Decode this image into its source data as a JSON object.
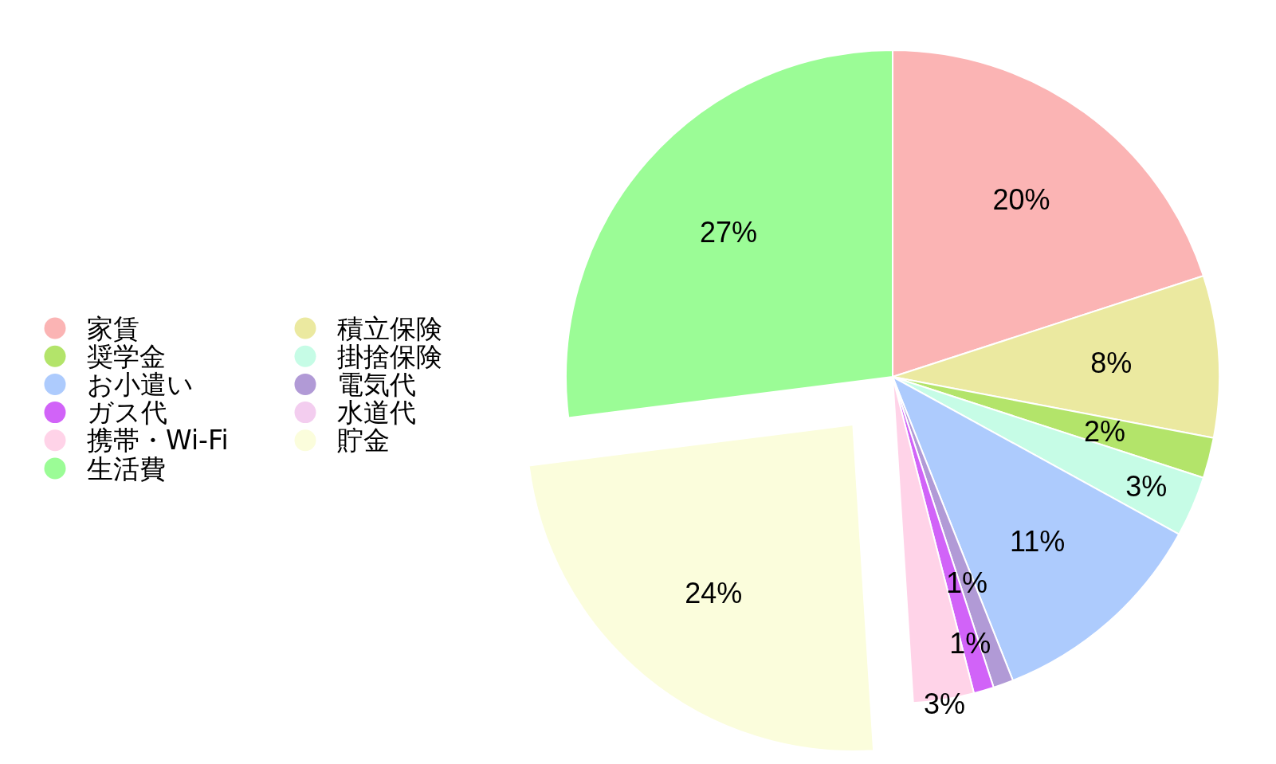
{
  "chart_data": {
    "type": "pie",
    "categories": [
      "家賃",
      "積立保険",
      "奨学金",
      "掛捨保険",
      "お小遣い",
      "電気代",
      "ガス代",
      "水道代",
      "携帯・Wi-Fi",
      "貯金",
      "生活費"
    ],
    "values": [
      20,
      8,
      2,
      3,
      11,
      1,
      1,
      0,
      3,
      24,
      27
    ],
    "colors": [
      "#fbb4b4",
      "#ebe9a0",
      "#b3e46a",
      "#c6fce6",
      "#adcbfd",
      "#b19ad6",
      "#d163f8",
      "#f3cdef",
      "#ffd3e8",
      "#fbfddc",
      "#9bfc96"
    ],
    "value_labels": [
      "20%",
      "8%",
      "2%",
      "3%",
      "11%",
      "1%",
      "1%",
      null,
      "3%",
      "24%",
      "27%"
    ],
    "legend": "left"
  }
}
